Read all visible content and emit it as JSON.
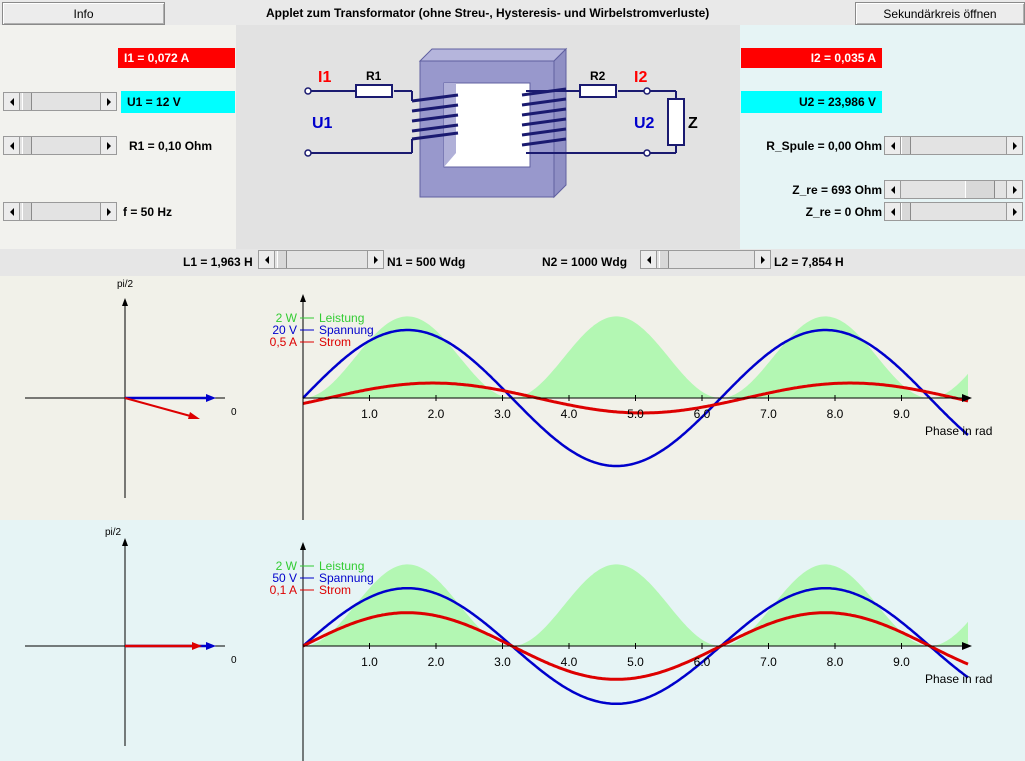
{
  "header": {
    "info_label": "Info",
    "title": "Applet zum Transformator (ohne Streu-, Hysteresis- und Wirbelstromverluste)",
    "secondary_label": "Sekundärkreis öffnen"
  },
  "left_panel": {
    "i1": "I1 = 0,072 A",
    "u1": "U1 = 12 V",
    "r1": "R1 = 0,10 Ohm",
    "f": "f = 50 Hz"
  },
  "right_panel": {
    "i2": "I2 = 0,035 A",
    "u2": "U2 = 23,986 V",
    "r_spule": "R_Spule = 0,00 Ohm",
    "z_re": "Z_re = 693 Ohm",
    "z_im": "Z_re = 0 Ohm"
  },
  "middle_bar": {
    "l1": "L1 = 1,963 H",
    "n1": "N1 = 500 Wdg",
    "n2": "N2 = 1000 Wdg",
    "l2": "L2 = 7,854 H"
  },
  "circuit": {
    "i1": "I1",
    "r1": "R1",
    "u1": "U1",
    "i2": "I2",
    "r2": "R2",
    "u2": "U2",
    "z": "Z"
  },
  "colors": {
    "meter_red": "#ff0000",
    "meter_cyan": "#00ffff",
    "power_fill": "#b3f7b3",
    "voltage": "#0000cc",
    "current": "#dd0000"
  },
  "primary_plot": {
    "phasor_y_label": "pi/2",
    "phasor_x_label": "0",
    "legend": [
      {
        "value": "2 W",
        "name": "Leistung"
      },
      {
        "value": "20 V",
        "name": "Spannung"
      },
      {
        "value": "0,5 A",
        "name": "Strom"
      }
    ],
    "x_label": "Phase in rad",
    "x_ticks": [
      "1.0",
      "2.0",
      "3.0",
      "4.0",
      "5.0",
      "6.0",
      "7.0",
      "8.0",
      "9.0"
    ]
  },
  "secondary_plot": {
    "phasor_y_label": "pi/2",
    "phasor_x_label": "0",
    "legend": [
      {
        "value": "2 W",
        "name": "Leistung"
      },
      {
        "value": "50 V",
        "name": "Spannung"
      },
      {
        "value": "0,1 A",
        "name": "Strom"
      }
    ],
    "x_label": "Phase in rad",
    "x_ticks": [
      "1.0",
      "2.0",
      "3.0",
      "4.0",
      "5.0",
      "6.0",
      "7.0",
      "8.0",
      "9.0"
    ]
  },
  "chart_data": [
    {
      "type": "line",
      "x_range": [
        0,
        10.0
      ],
      "x_ticks": [
        1,
        2,
        3,
        4,
        5,
        6,
        7,
        8,
        9
      ],
      "xlabel": "Phase in rad",
      "series": [
        {
          "name": "Leistung",
          "kind": "area",
          "function": "sin^2(x)",
          "peak_units": 1.2
        },
        {
          "name": "Spannung",
          "kind": "line",
          "function": "sin(x)",
          "amplitude_units": 1.0
        },
        {
          "name": "Strom",
          "kind": "line",
          "function": "sin(x-0.38)",
          "amplitude_units": 0.22
        }
      ]
    },
    {
      "type": "line",
      "x_range": [
        0,
        10.0
      ],
      "x_ticks": [
        1,
        2,
        3,
        4,
        5,
        6,
        7,
        8,
        9
      ],
      "xlabel": "Phase in rad",
      "series": [
        {
          "name": "Leistung",
          "kind": "area",
          "function": "sin^2(x)",
          "peak_units": 1.2
        },
        {
          "name": "Spannung",
          "kind": "line",
          "function": "sin(x)",
          "amplitude_units": 0.85
        },
        {
          "name": "Strom",
          "kind": "line",
          "function": "sin(x)",
          "amplitude_units": 0.49
        }
      ]
    }
  ]
}
